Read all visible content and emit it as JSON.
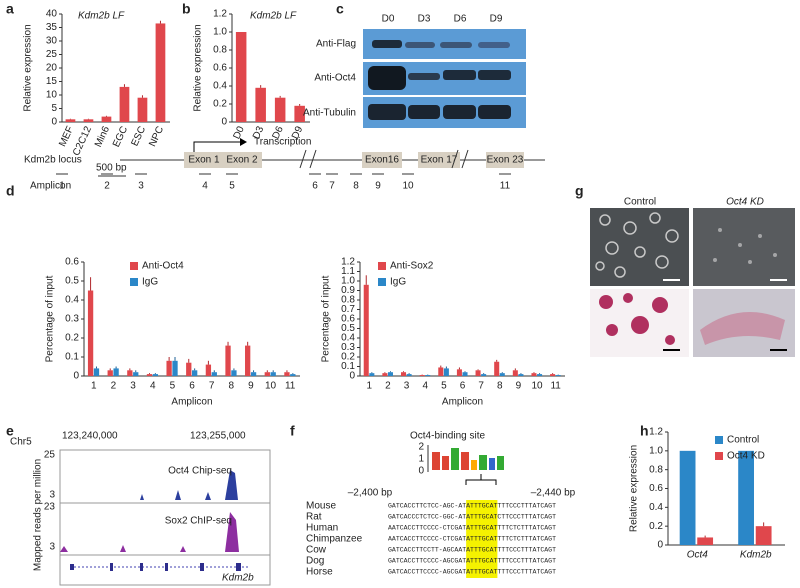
{
  "panel_labels": [
    "a",
    "b",
    "c",
    "d",
    "e",
    "f",
    "g",
    "h"
  ],
  "chart_data": [
    {
      "type": "bar",
      "title": "Kdm2b LF",
      "ylabel": "Relative expression",
      "categories": [
        "MEF",
        "C2C12",
        "Min6",
        "EGC",
        "ESC",
        "NPC"
      ],
      "values": [
        1,
        1,
        2,
        13,
        9,
        36.5
      ],
      "errors": [
        0.2,
        0.2,
        0.3,
        1,
        0.9,
        1
      ],
      "color": "#e0474c",
      "ylim": [
        0,
        40
      ],
      "yticks": [
        0,
        5,
        10,
        15,
        20,
        25,
        30,
        35,
        40
      ]
    },
    {
      "type": "bar",
      "title": "Kdm2b LF",
      "ylabel": "Relative expression",
      "categories": [
        "D0",
        "D3",
        "D6",
        "D9"
      ],
      "values": [
        1,
        0.38,
        0.27,
        0.18
      ],
      "errors": [
        0,
        0.03,
        0.02,
        0.02
      ],
      "color": "#e0474c",
      "ylim": [
        0,
        1.2
      ],
      "yticks": [
        0,
        0.2,
        0.4,
        0.6,
        0.8,
        {
          "value": 1,
          "label": "1.0"
        },
        1.2
      ]
    },
    {
      "type": "bar",
      "ylabel": "Percentage of input",
      "xlabel": "Amplicon",
      "categories": [
        "1",
        "2",
        "3",
        "4",
        "5",
        "6",
        "7",
        "8",
        "9",
        "10",
        "11"
      ],
      "series": [
        {
          "name": "Anti-Oct4",
          "color": "#e0474c",
          "values": [
            0.45,
            0.03,
            0.03,
            0.01,
            0.08,
            0.07,
            0.06,
            0.16,
            0.16,
            0.02,
            0.02
          ],
          "errors": [
            0.07,
            0.01,
            0.01,
            0.005,
            0.02,
            0.02,
            0.02,
            0.02,
            0.02,
            0.01,
            0.01
          ]
        },
        {
          "name": "IgG",
          "color": "#2b87c8",
          "values": [
            0.04,
            0.04,
            0.02,
            0.01,
            0.08,
            0.03,
            0.02,
            0.03,
            0.02,
            0.02,
            0.01
          ],
          "errors": [
            0.01,
            0.01,
            0.01,
            0.005,
            0.02,
            0.01,
            0.01,
            0.01,
            0.01,
            0.01,
            0.005
          ]
        }
      ],
      "ylim": [
        0,
        0.6
      ],
      "yticks": [
        0,
        0.1,
        0.2,
        0.3,
        0.4,
        0.5,
        0.6
      ]
    },
    {
      "type": "bar",
      "ylabel": "Percentage of input",
      "xlabel": "Amplicon",
      "categories": [
        "1",
        "2",
        "3",
        "4",
        "5",
        "6",
        "7",
        "8",
        "9",
        "10",
        "11"
      ],
      "series": [
        {
          "name": "Anti-Sox2",
          "color": "#e0474c",
          "values": [
            0.96,
            0.03,
            0.04,
            0.01,
            0.09,
            0.07,
            0.06,
            0.15,
            0.06,
            0.03,
            0.02
          ],
          "errors": [
            0.1,
            0.01,
            0.01,
            0.005,
            0.02,
            0.02,
            0.01,
            0.02,
            0.02,
            0.01,
            0.01
          ]
        },
        {
          "name": "IgG",
          "color": "#2b87c8",
          "values": [
            0.03,
            0.04,
            0.02,
            0.01,
            0.08,
            0.04,
            0.02,
            0.03,
            0.02,
            0.02,
            0.01
          ],
          "errors": [
            0.01,
            0.01,
            0.01,
            0.005,
            0.02,
            0.01,
            0.01,
            0.01,
            0.01,
            0.01,
            0.005
          ]
        }
      ],
      "ylim": [
        0,
        1.2
      ],
      "yticks": [
        0,
        0.1,
        0.2,
        0.3,
        0.4,
        0.5,
        0.6,
        0.7,
        0.8,
        0.9,
        {
          "value": 1,
          "label": "1.0"
        },
        1.1,
        1.2
      ]
    },
    {
      "type": "bar",
      "ylabel": "Relative expression",
      "categories": [
        "Oct4",
        "Kdm2b"
      ],
      "series": [
        {
          "name": "Control",
          "color": "#2b87c8",
          "values": [
            1,
            1
          ],
          "errors": [
            0,
            0
          ]
        },
        {
          "name": "Oct4 KD",
          "color": "#e0474c",
          "values": [
            0.08,
            0.2
          ],
          "errors": [
            0.02,
            0.04
          ]
        }
      ],
      "ylim": [
        0,
        1.2
      ],
      "yticks": [
        0,
        0.2,
        0.4,
        0.6,
        0.8,
        {
          "value": 1,
          "label": "1.0"
        },
        1.2
      ]
    }
  ],
  "blot": {
    "lanes": [
      "D0",
      "D3",
      "D6",
      "D9"
    ],
    "rows": [
      "Anti-Flag",
      "Anti-Oct4",
      "Anti-Tubulin"
    ]
  },
  "locus": {
    "scale": "500 bp",
    "arrow": "Transcription",
    "name": "Kdm2b locus",
    "exons": [
      "Exon 1",
      "Exon 2",
      "Exon16",
      "Exon 17",
      "Exon 23"
    ],
    "amplicon_label": "Amplicon",
    "amplicons": [
      "1",
      "2",
      "3",
      "4",
      "5",
      "6",
      "7",
      "8",
      "9",
      "10",
      "11"
    ]
  },
  "browser": {
    "chrom": "Chr5",
    "start": "123,240,000",
    "end": "123,255,000",
    "ylabel": "Mapped reads per million",
    "tracks": [
      {
        "name": "Oct4 Chip-seq",
        "max": "25",
        "min": "3"
      },
      {
        "name": "Sox2 ChIP-seq",
        "max": "23",
        "min": "3"
      }
    ],
    "gene": "Kdm2b"
  },
  "alignment": {
    "logo_title": "Oct4-binding site",
    "logo_ticks": [
      "2",
      "1",
      "0"
    ],
    "left": "–2,400 bp",
    "right": "–2,440 bp",
    "species": [
      "Mouse",
      "Rat",
      "Human",
      "Chimpanzee",
      "Cow",
      "Dog",
      "Horse"
    ],
    "sequences": [
      "GATCACCTTCTCC-AGC-ATATTTGCATTTTCCCTTTATCAGT",
      "GATCACCCTCTCC-GGC-ATATTTGCATCTTCCCTTTATCAGT",
      "AATCACCTTCCCC-CTCGATATTTGCATTTTCTCTTTATCAGT",
      "AATCACCTTCCCC-CTCGATATTTGCATTTTCTCTTTATCAGT",
      "GATCACCTTCCTT-AGCAATATTTGCATTTTCCCTTTATCAGT",
      "GATCACCTTCCCC-AGCGATATTTGCATTTTCCCTTTATCAGT",
      "GATCACCTTCCCC-AGCGATATTTGCATTTTCCCTTTATCAGT"
    ]
  },
  "images": {
    "left": "Control",
    "right": "Oct4 KD"
  }
}
